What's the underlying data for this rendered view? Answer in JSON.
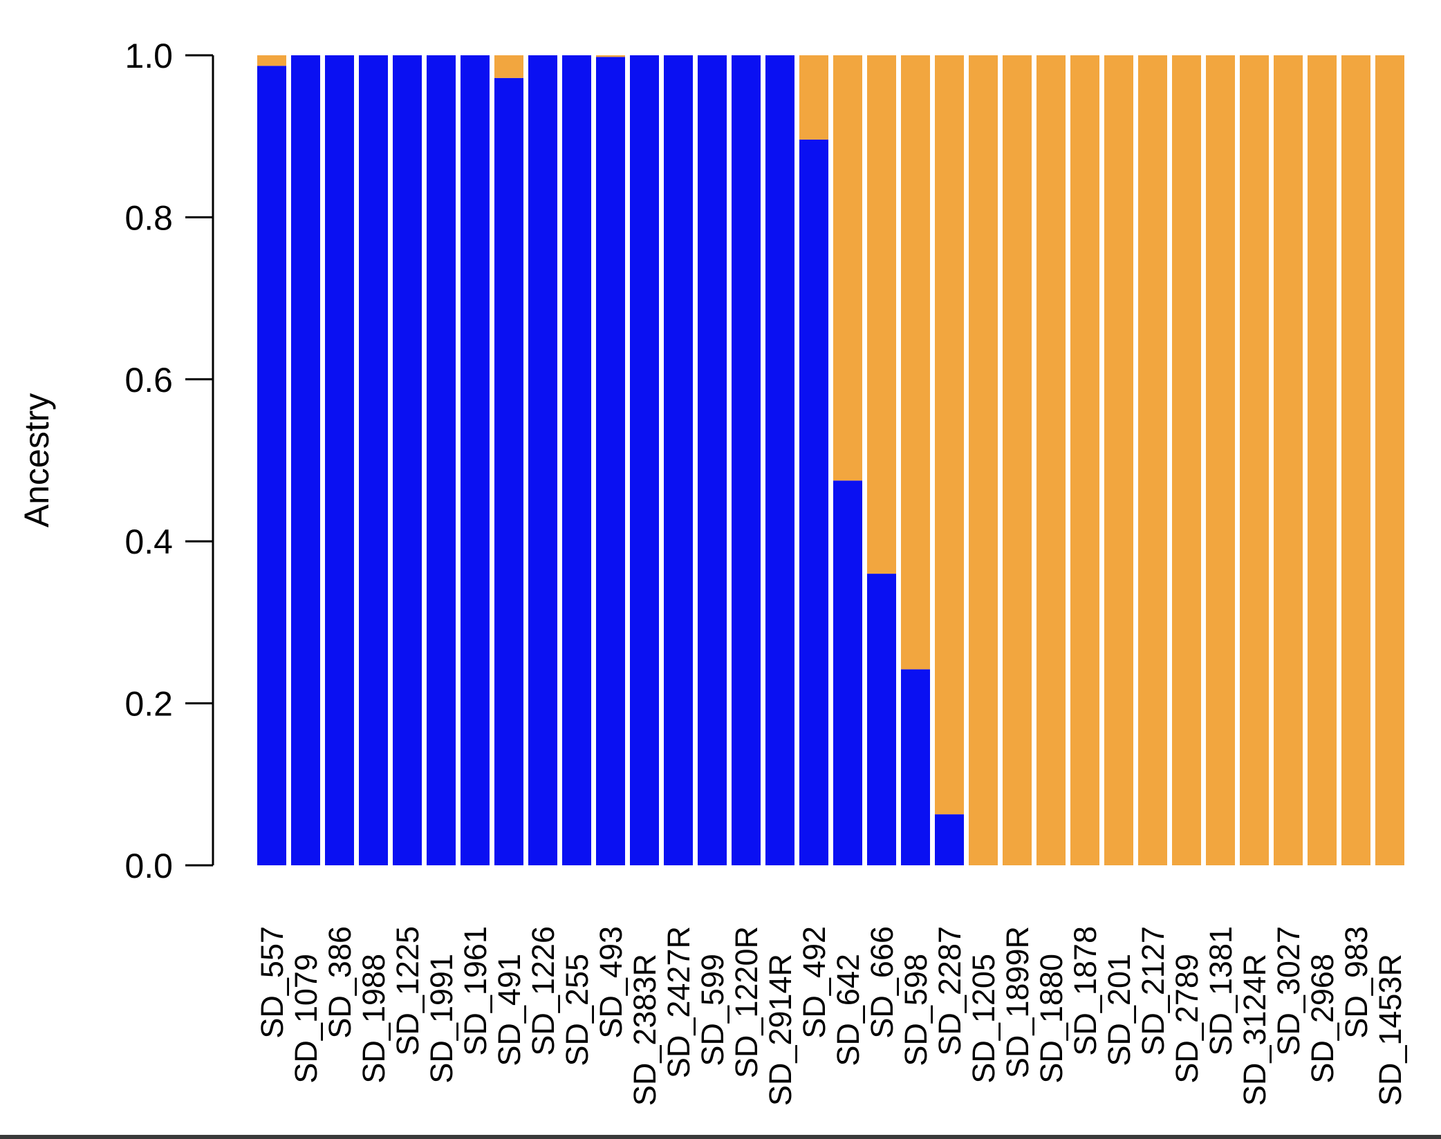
{
  "chart_data": {
    "type": "bar",
    "stacked": true,
    "title": "",
    "xlabel": "",
    "ylabel": "Ancestry",
    "ylim": [
      0,
      1
    ],
    "yticks": [
      "0.0",
      "0.2",
      "0.4",
      "0.6",
      "0.8",
      "1.0"
    ],
    "ytick_values": [
      0,
      0.2,
      0.4,
      0.6,
      0.8,
      1.0
    ],
    "grid": false,
    "legend": "none",
    "categories": [
      "SD_557",
      "SD_1079",
      "SD_386",
      "SD_1988",
      "SD_1225",
      "SD_1991",
      "SD_1961",
      "SD_491",
      "SD_1226",
      "SD_255",
      "SD_493",
      "SD_2383R",
      "SD_2427R",
      "SD_599",
      "SD_1220R",
      "SD_2914R",
      "SD_492",
      "SD_642",
      "SD_666",
      "SD_598",
      "SD_2287",
      "SD_1205",
      "SD_1899R",
      "SD_1880",
      "SD_1878",
      "SD_201",
      "SD_2127",
      "SD_2789",
      "SD_1381",
      "SD_3124R",
      "SD_3027",
      "SD_2968",
      "SD_983",
      "SD_1453R"
    ],
    "series": [
      {
        "color": "#0a10f2",
        "values": [
          0.987,
          1.0,
          1.0,
          1.0,
          1.0,
          1.0,
          1.0,
          0.972,
          1.0,
          1.0,
          0.998,
          1.0,
          1.0,
          1.0,
          1.0,
          1.0,
          0.896,
          0.475,
          0.36,
          0.242,
          0.063,
          0,
          0,
          0,
          0,
          0,
          0,
          0,
          0,
          0,
          0,
          0,
          0,
          0
        ]
      },
      {
        "color": "#f2a63f",
        "values": [
          0.013,
          0,
          0,
          0,
          0,
          0,
          0,
          0.028,
          0,
          0,
          0.002,
          0,
          0,
          0,
          0,
          0,
          0.104,
          0.525,
          0.64,
          0.758,
          0.937,
          1.0,
          1.0,
          1.0,
          1.0,
          1.0,
          1.0,
          1.0,
          1.0,
          1.0,
          1.0,
          1.0,
          1.0,
          1.0
        ]
      }
    ]
  }
}
